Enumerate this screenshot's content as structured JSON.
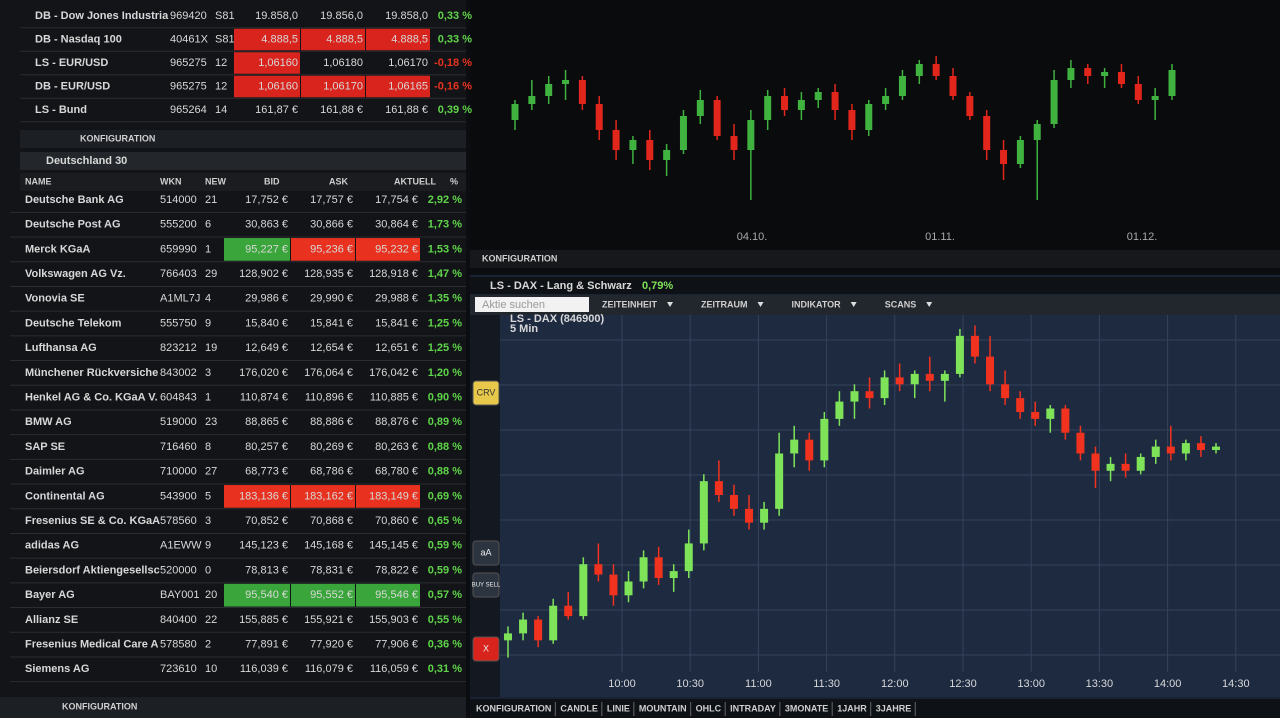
{
  "watchlist": {
    "rows": [
      {
        "cells": [
          "DB - Dow Jones Industria",
          "969420",
          "S81",
          "19.858,0",
          "19.856,0",
          "19.858,0",
          "0,33 %"
        ]
      },
      {
        "cells": [
          "DB - Nasdaq 100",
          "40461X",
          "S81",
          "4.888,5",
          "4.888,5",
          "4.888,5",
          "0,33 %"
        ],
        "highlight": {
          "3": "#d8241c",
          "4": "#d8241c",
          "5": "#d8241c"
        }
      },
      {
        "cells": [
          "LS - EUR/USD",
          "965275",
          "12",
          "1,06160",
          "1,06180",
          "1,06170",
          "-0,18 %"
        ],
        "highlight": {
          "3": "#d8241c"
        }
      },
      {
        "cells": [
          "DB - EUR/USD",
          "965275",
          "12",
          "1,06160",
          "1,06170",
          "1,06165",
          "-0,16 %"
        ],
        "highlight": {
          "3": "#d8241c",
          "4": "#d8241c",
          "5": "#d8241c"
        }
      },
      {
        "cells": [
          "LS - Bund",
          "965264",
          "14",
          "161,87 €",
          "161,88 €",
          "161,88 €",
          "0,39 %"
        ]
      }
    ],
    "footer": "KONFIGURATION"
  },
  "table": {
    "title": "Deutschland 30",
    "columns": [
      "NAME",
      "WKN",
      "NEW",
      "BID",
      "ASK",
      "AKTUELL",
      "%"
    ],
    "rows": [
      {
        "cells": [
          "Deutsche Bank AG",
          "514000",
          "21",
          "17,752 €",
          "17,757 €",
          "17,754 €",
          "2,92 %"
        ]
      },
      {
        "cells": [
          "Deutsche Post AG",
          "555200",
          "6",
          "30,863 €",
          "30,866 €",
          "30,864 €",
          "1,73 %"
        ]
      },
      {
        "cells": [
          "Merck KGaA",
          "659990",
          "1",
          "95,227 €",
          "95,236 €",
          "95,232 €",
          "1,53 %"
        ],
        "highlight": {
          "3": "#3aa53a",
          "4": "#e8321f",
          "5": "#e8321f"
        }
      },
      {
        "cells": [
          "Volkswagen AG Vz.",
          "766403",
          "29",
          "128,902 €",
          "128,935 €",
          "128,918 €",
          "1,47 %"
        ]
      },
      {
        "cells": [
          "Vonovia SE",
          "A1ML7J",
          "4",
          "29,986 €",
          "29,990 €",
          "29,988 €",
          "1,35 %"
        ]
      },
      {
        "cells": [
          "Deutsche Telekom",
          "555750",
          "9",
          "15,840 €",
          "15,841 €",
          "15,841 €",
          "1,25 %"
        ]
      },
      {
        "cells": [
          "Lufthansa AG",
          "823212",
          "19",
          "12,649 €",
          "12,654 €",
          "12,651 €",
          "1,25 %"
        ]
      },
      {
        "cells": [
          "Münchener Rückversiche",
          "843002",
          "3",
          "176,020 €",
          "176,064 €",
          "176,042 €",
          "1,20 %"
        ]
      },
      {
        "cells": [
          "Henkel AG & Co. KGaA V.",
          "604843",
          "1",
          "110,874 €",
          "110,896 €",
          "110,885 €",
          "0,90 %"
        ]
      },
      {
        "cells": [
          "BMW AG",
          "519000",
          "23",
          "88,865 €",
          "88,886 €",
          "88,876 €",
          "0,89 %"
        ]
      },
      {
        "cells": [
          "SAP SE",
          "716460",
          "8",
          "80,257 €",
          "80,269 €",
          "80,263 €",
          "0,88 %"
        ]
      },
      {
        "cells": [
          "Daimler AG",
          "710000",
          "27",
          "68,773 €",
          "68,786 €",
          "68,780 €",
          "0,88 %"
        ]
      },
      {
        "cells": [
          "Continental AG",
          "543900",
          "5",
          "183,136 €",
          "183,162 €",
          "183,149 €",
          "0,69 %"
        ],
        "highlight": {
          "3": "#e8321f",
          "4": "#e8321f",
          "5": "#e8321f"
        }
      },
      {
        "cells": [
          "Fresenius SE & Co. KGaA",
          "578560",
          "3",
          "70,852 €",
          "70,868 €",
          "70,860 €",
          "0,65 %"
        ]
      },
      {
        "cells": [
          "adidas AG",
          "A1EWW",
          "9",
          "145,123 €",
          "145,168 €",
          "145,145 €",
          "0,59 %"
        ]
      },
      {
        "cells": [
          "Beiersdorf Aktiengesellsc",
          "520000",
          "0",
          "78,813 €",
          "78,831 €",
          "78,822 €",
          "0,59 %"
        ]
      },
      {
        "cells": [
          "Bayer AG",
          "BAY001",
          "20",
          "95,540 €",
          "95,552 €",
          "95,546 €",
          "0,57 %"
        ],
        "highlight": {
          "3": "#3aa53a",
          "4": "#3aa53a",
          "5": "#3aa53a"
        }
      },
      {
        "cells": [
          "Allianz SE",
          "840400",
          "22",
          "155,885 €",
          "155,921 €",
          "155,903 €",
          "0,55 %"
        ]
      },
      {
        "cells": [
          "Fresenius Medical Care A",
          "578580",
          "2",
          "77,891 €",
          "77,920 €",
          "77,906 €",
          "0,36 %"
        ]
      },
      {
        "cells": [
          "Siemens AG",
          "723610",
          "10",
          "116,039 €",
          "116,079 €",
          "116,059 €",
          "0,31 %"
        ]
      }
    ],
    "footer": "KONFIGURATION"
  },
  "top_chart": {
    "type": "candlestick",
    "footer": "KONFIGURATION",
    "xticks": [
      "04.10.",
      "01.11.",
      "01.12."
    ],
    "ylim": [
      0,
      100
    ],
    "up_color": "#3fb23f",
    "down_color": "#e2261c",
    "candles": [
      [
        50,
        60,
        45,
        58
      ],
      [
        58,
        70,
        55,
        62
      ],
      [
        62,
        72,
        58,
        68
      ],
      [
        68,
        75,
        60,
        70
      ],
      [
        70,
        72,
        55,
        58
      ],
      [
        58,
        62,
        40,
        45
      ],
      [
        45,
        50,
        30,
        35
      ],
      [
        35,
        42,
        28,
        40
      ],
      [
        40,
        45,
        25,
        30
      ],
      [
        30,
        38,
        22,
        35
      ],
      [
        35,
        55,
        33,
        52
      ],
      [
        52,
        65,
        48,
        60
      ],
      [
        60,
        62,
        40,
        42
      ],
      [
        42,
        48,
        30,
        35
      ],
      [
        35,
        55,
        10,
        50
      ],
      [
        50,
        65,
        45,
        62
      ],
      [
        62,
        66,
        52,
        55
      ],
      [
        55,
        64,
        50,
        60
      ],
      [
        60,
        66,
        56,
        64
      ],
      [
        64,
        68,
        50,
        55
      ],
      [
        55,
        58,
        40,
        45
      ],
      [
        45,
        60,
        42,
        58
      ],
      [
        58,
        66,
        55,
        62
      ],
      [
        62,
        75,
        60,
        72
      ],
      [
        72,
        80,
        68,
        78
      ],
      [
        78,
        82,
        70,
        72
      ],
      [
        72,
        76,
        60,
        62
      ],
      [
        62,
        64,
        50,
        52
      ],
      [
        52,
        55,
        30,
        35
      ],
      [
        35,
        40,
        20,
        28
      ],
      [
        28,
        42,
        26,
        40
      ],
      [
        40,
        50,
        10,
        48
      ],
      [
        48,
        75,
        46,
        70
      ],
      [
        70,
        80,
        66,
        76
      ],
      [
        76,
        78,
        68,
        72
      ],
      [
        72,
        76,
        66,
        74
      ],
      [
        74,
        78,
        66,
        68
      ],
      [
        68,
        72,
        58,
        60
      ],
      [
        60,
        66,
        50,
        62
      ],
      [
        62,
        78,
        60,
        75
      ]
    ]
  },
  "dax_window": {
    "title": "LS - DAX - Lang & Schwarz",
    "change": "0,79%",
    "search_placeholder": "Aktie suchen",
    "menu": [
      "ZEITEINHEIT",
      "ZEITRAUM",
      "INDIKATOR",
      "SCANS"
    ],
    "tools": [
      "CRV",
      "aA",
      "BUY SELL",
      "X"
    ],
    "toolbar": [
      "KONFIGURATION",
      "CANDLE",
      "LINIE",
      "MOUNTAIN",
      "OHLC",
      "INTRADAY",
      "3MONATE",
      "1JAHR",
      "3JAHRE"
    ],
    "chart": {
      "type": "candlestick",
      "label": "LS - DAX (846900)",
      "interval": "5 Min",
      "xticks": [
        "10:00",
        "10:30",
        "11:00",
        "11:30",
        "12:00",
        "12:30",
        "13:00",
        "13:30",
        "14:00",
        "14:30"
      ],
      "ylim": [
        0,
        100
      ],
      "up_color": "#7fe35a",
      "down_color": "#f0321e",
      "candles": [
        [
          8,
          12,
          3,
          10
        ],
        [
          10,
          16,
          8,
          14
        ],
        [
          14,
          15,
          6,
          8
        ],
        [
          8,
          20,
          7,
          18
        ],
        [
          18,
          22,
          14,
          15
        ],
        [
          15,
          32,
          14,
          30
        ],
        [
          30,
          36,
          25,
          27
        ],
        [
          27,
          30,
          18,
          21
        ],
        [
          21,
          28,
          19,
          25
        ],
        [
          25,
          34,
          23,
          32
        ],
        [
          32,
          35,
          24,
          26
        ],
        [
          26,
          30,
          22,
          28
        ],
        [
          28,
          40,
          26,
          36
        ],
        [
          36,
          56,
          34,
          54
        ],
        [
          54,
          60,
          48,
          50
        ],
        [
          50,
          53,
          44,
          46
        ],
        [
          46,
          50,
          40,
          42
        ],
        [
          42,
          48,
          40,
          46
        ],
        [
          46,
          68,
          44,
          62
        ],
        [
          62,
          70,
          58,
          66
        ],
        [
          66,
          68,
          57,
          60
        ],
        [
          60,
          74,
          58,
          72
        ],
        [
          72,
          80,
          70,
          77
        ],
        [
          77,
          82,
          72,
          80
        ],
        [
          80,
          84,
          75,
          78
        ],
        [
          78,
          86,
          76,
          84
        ],
        [
          84,
          88,
          80,
          82
        ],
        [
          82,
          86,
          78,
          85
        ],
        [
          85,
          90,
          80,
          83
        ],
        [
          83,
          86,
          77,
          85
        ],
        [
          85,
          98,
          84,
          96
        ],
        [
          96,
          99,
          88,
          90
        ],
        [
          90,
          96,
          80,
          82
        ],
        [
          82,
          86,
          76,
          78
        ],
        [
          78,
          80,
          72,
          74
        ],
        [
          74,
          77,
          70,
          72
        ],
        [
          72,
          76,
          68,
          75
        ],
        [
          75,
          76,
          66,
          68
        ],
        [
          68,
          70,
          60,
          62
        ],
        [
          62,
          64,
          52,
          57
        ],
        [
          57,
          61,
          54,
          59
        ],
        [
          59,
          62,
          55,
          57
        ],
        [
          57,
          62,
          56,
          61
        ],
        [
          61,
          66,
          59,
          64
        ],
        [
          64,
          70,
          60,
          62
        ],
        [
          62,
          66,
          60,
          65
        ],
        [
          65,
          67,
          61,
          63
        ],
        [
          63,
          65,
          62,
          64
        ]
      ]
    }
  }
}
